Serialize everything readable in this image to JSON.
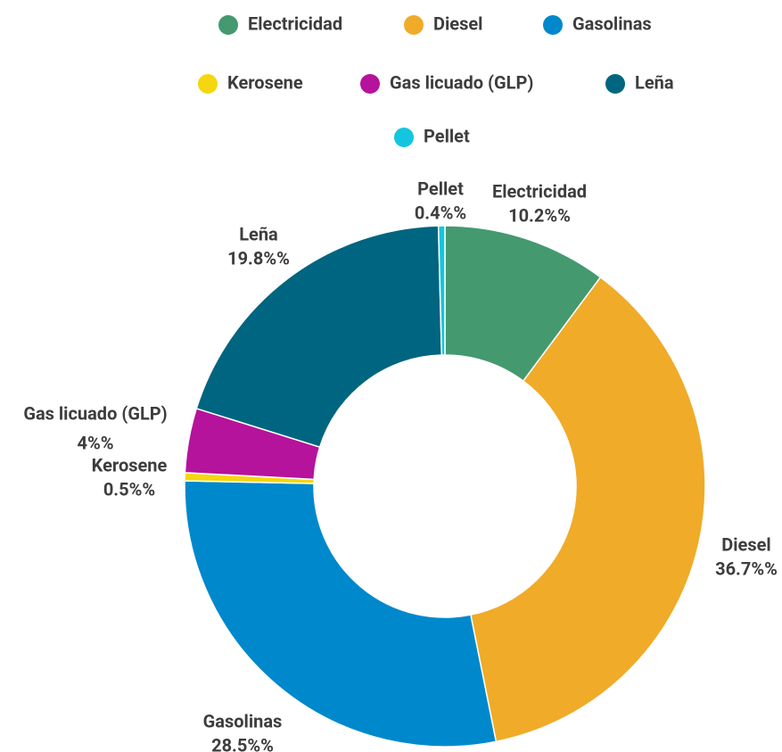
{
  "chart_data": {
    "type": "donut",
    "categories": [
      "Electricidad",
      "Diesel",
      "Gasolinas",
      "Kerosene",
      "Gas licuado (GLP)",
      "Leña",
      "Pellet"
    ],
    "values": [
      10.2,
      36.7,
      28.5,
      0.5,
      4,
      19.8,
      0.4
    ],
    "value_labels": [
      "10.2%%",
      "36.7%%",
      "28.5%%",
      "0.5%%",
      "4%%",
      "19.8%%",
      "0.4%%"
    ],
    "colors": [
      "#44996f",
      "#f0ab28",
      "#0088cc",
      "#f5d60f",
      "#b5139b",
      "#006580",
      "#13c6dd"
    ],
    "legend": "top"
  }
}
